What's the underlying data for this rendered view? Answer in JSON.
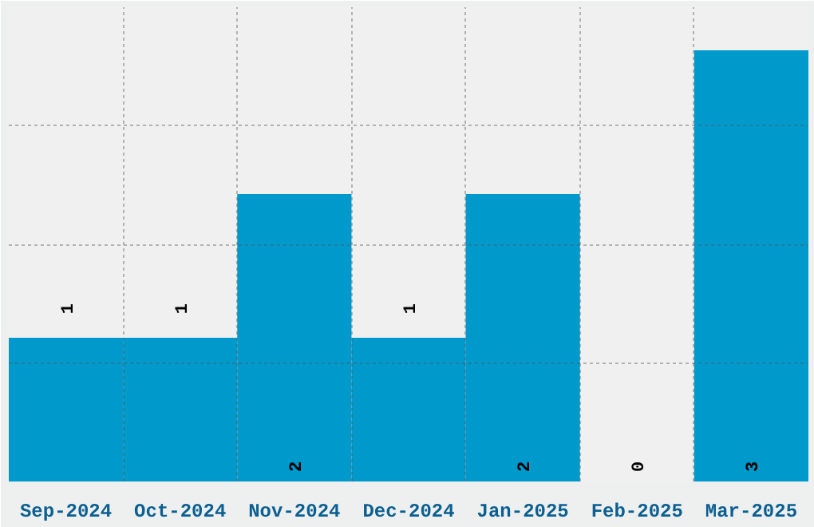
{
  "chart_data": {
    "type": "bar",
    "categories": [
      "Sep-2024",
      "Oct-2024",
      "Nov-2024",
      "Dec-2024",
      "Jan-2025",
      "Feb-2025",
      "Mar-2025"
    ],
    "values": [
      1,
      1,
      2,
      1,
      2,
      0,
      3
    ],
    "color": "#0099cc",
    "ylim": [
      0,
      3.3
    ],
    "yticks": [
      {
        "value": 0.825,
        "label": null
      },
      {
        "value": 1.65,
        "label": null
      },
      {
        "value": 2.475,
        "label": null
      },
      {
        "value": 3.3,
        "label": null
      }
    ],
    "tick_labels": "x",
    "grid": true,
    "data_labels": true
  }
}
